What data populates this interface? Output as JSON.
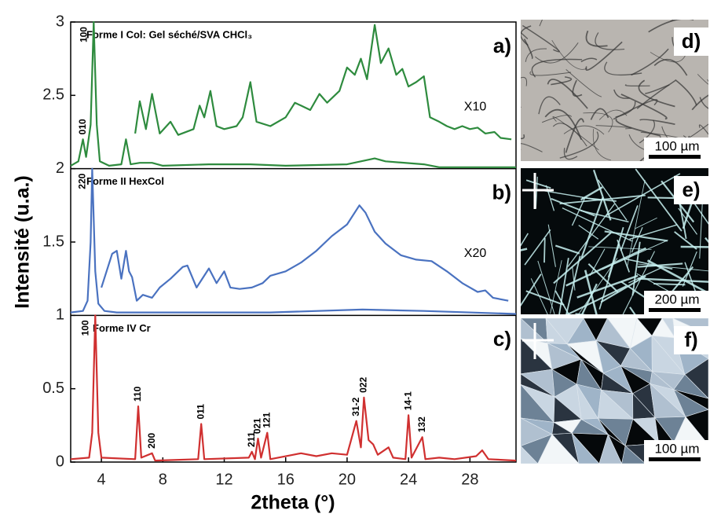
{
  "chart_data": {
    "type": "line",
    "xlabel": "2theta (°)",
    "ylabel": "Intensité (u.a.)",
    "xlim": [
      2,
      31
    ],
    "ylim": [
      0,
      3
    ],
    "xticks": [
      4,
      8,
      12,
      16,
      20,
      24,
      28
    ],
    "yticks": [
      0,
      0.5,
      1,
      1.5,
      2,
      2.5,
      3
    ],
    "panels": [
      {
        "title": "Forme I Col: Gel séché/SVA CHCl₃",
        "letter": "a)",
        "scale": "X10"
      },
      {
        "title": "Forme II HexCol",
        "letter": "b)",
        "scale": "X20"
      },
      {
        "title": "Forme IV Cr",
        "letter": "c)"
      }
    ],
    "series": [
      {
        "color": "#2e8b3e",
        "x": [
          2.0,
          2.5,
          2.8,
          3.0,
          3.3,
          3.5,
          3.7,
          3.9,
          4.5,
          5.3,
          5.6,
          5.9,
          6.5,
          7.3,
          8,
          11,
          13.7,
          16,
          20,
          21.8,
          22.5,
          25,
          26,
          31
        ],
        "values": [
          2.02,
          2.05,
          2.2,
          2.08,
          2.3,
          3.0,
          2.3,
          2.05,
          2.02,
          2.03,
          2.2,
          2.03,
          2.04,
          2.04,
          2.02,
          2.03,
          2.03,
          2.02,
          2.03,
          2.07,
          2.05,
          2.03,
          2.01,
          2.01
        ]
      },
      {
        "color": "#2e8b3e",
        "x": [
          6.2,
          6.5,
          6.9,
          7.3,
          7.8,
          8.5,
          9,
          10,
          10.4,
          10.7,
          11.1,
          11.5,
          12,
          12.8,
          13.2,
          13.7,
          14.1,
          15,
          16,
          16.6,
          17,
          17.6,
          18.2,
          18.7,
          19.5,
          20,
          20.5,
          20.9,
          21.3,
          21.8,
          22.2,
          22.7,
          23.2,
          23.6,
          24,
          24.5,
          25,
          25.4,
          26,
          26.5,
          27,
          27.5,
          28,
          28.5,
          29,
          29.6,
          30,
          30.7
        ],
        "values": [
          2.24,
          2.46,
          2.27,
          2.51,
          2.24,
          2.32,
          2.23,
          2.27,
          2.43,
          2.35,
          2.53,
          2.29,
          2.27,
          2.29,
          2.35,
          2.59,
          2.32,
          2.29,
          2.35,
          2.45,
          2.43,
          2.4,
          2.51,
          2.45,
          2.53,
          2.69,
          2.64,
          2.75,
          2.61,
          2.98,
          2.72,
          2.82,
          2.64,
          2.68,
          2.56,
          2.59,
          2.63,
          2.35,
          2.32,
          2.29,
          2.27,
          2.29,
          2.27,
          2.28,
          2.24,
          2.25,
          2.21,
          2.2
        ]
      },
      {
        "color": "#4a72c0",
        "x": [
          2.0,
          2.8,
          3.1,
          3.3,
          3.4,
          3.6,
          3.8,
          4.2,
          5,
          10,
          15,
          21,
          25,
          31
        ],
        "values": [
          1.02,
          1.03,
          1.1,
          1.5,
          2.0,
          1.3,
          1.08,
          1.03,
          1.02,
          1.02,
          1.02,
          1.04,
          1.03,
          1.01
        ]
      },
      {
        "color": "#4a72c0",
        "x": [
          4.0,
          4.7,
          5.0,
          5.3,
          5.6,
          5.8,
          6.0,
          6.3,
          6.7,
          7.3,
          7.8,
          8.5,
          9.3,
          9.6,
          10.2,
          11,
          11.5,
          12,
          12.4,
          13,
          13.8,
          14.5,
          15,
          16,
          17,
          18,
          19,
          20,
          20.8,
          21.2,
          21.8,
          22.5,
          23.5,
          24.5,
          25.5,
          26.5,
          27.5,
          28.5,
          29,
          29.5,
          30.5
        ],
        "values": [
          1.19,
          1.42,
          1.44,
          1.25,
          1.44,
          1.3,
          1.26,
          1.1,
          1.14,
          1.12,
          1.19,
          1.25,
          1.33,
          1.34,
          1.19,
          1.32,
          1.22,
          1.3,
          1.19,
          1.18,
          1.19,
          1.22,
          1.27,
          1.3,
          1.36,
          1.44,
          1.54,
          1.62,
          1.75,
          1.7,
          1.57,
          1.49,
          1.41,
          1.38,
          1.37,
          1.3,
          1.22,
          1.16,
          1.17,
          1.12,
          1.1
        ]
      },
      {
        "color": "#d03030",
        "x": [
          2.0,
          3.2,
          3.4,
          3.6,
          3.8,
          4.0,
          6.2,
          6.4,
          6.6,
          7.3,
          7.5,
          10.3,
          10.5,
          10.7,
          13.6,
          13.8,
          14.0,
          14.2,
          14.4,
          14.8,
          15.0,
          16.5,
          17,
          18,
          19,
          20,
          20.6,
          20.9,
          21.1,
          21.4,
          21.7,
          22,
          22.7,
          23,
          23.8,
          24,
          24.2,
          24.9,
          25.1,
          26,
          27,
          28.4,
          28.8,
          29.2,
          31
        ],
        "values": [
          0.02,
          0.03,
          0.2,
          1.0,
          0.2,
          0.03,
          0.02,
          0.38,
          0.03,
          0.06,
          0.01,
          0.02,
          0.26,
          0.02,
          0.03,
          0.07,
          0.02,
          0.16,
          0.03,
          0.2,
          0.02,
          0.05,
          0.06,
          0.04,
          0.06,
          0.05,
          0.28,
          0.1,
          0.44,
          0.15,
          0.12,
          0.05,
          0.1,
          0.03,
          0.02,
          0.32,
          0.03,
          0.17,
          0.02,
          0.03,
          0.02,
          0.04,
          0.08,
          0.02,
          0.01
        ]
      }
    ],
    "peaks": [
      {
        "label": "010",
        "x": 2.8,
        "y": 2.2
      },
      {
        "label": "100",
        "x": 3.5,
        "y": 3.0
      },
      {
        "label": "220",
        "x": 3.4,
        "y": 2.0
      },
      {
        "label": "100",
        "x": 3.6,
        "y": 1.0
      },
      {
        "label": "110",
        "x": 6.4,
        "y": 0.38
      },
      {
        "label": "200",
        "x": 7.3,
        "y": 0.06
      },
      {
        "label": "011",
        "x": 10.5,
        "y": 0.26
      },
      {
        "label": "211",
        "x": 13.8,
        "y": 0.07
      },
      {
        "label": "021",
        "x": 14.2,
        "y": 0.16
      },
      {
        "label": "121",
        "x": 14.8,
        "y": 0.2
      },
      {
        "label": "31-2",
        "x": 20.6,
        "y": 0.28
      },
      {
        "label": "022",
        "x": 21.1,
        "y": 0.44
      },
      {
        "label": "14-1",
        "x": 24.0,
        "y": 0.32
      },
      {
        "label": "132",
        "x": 24.9,
        "y": 0.17
      }
    ],
    "images": [
      {
        "letter": "d)",
        "scale_bar": "100 µm"
      },
      {
        "letter": "e)",
        "scale_bar": "200 µm"
      },
      {
        "letter": "f)",
        "scale_bar": "100 µm"
      }
    ]
  }
}
